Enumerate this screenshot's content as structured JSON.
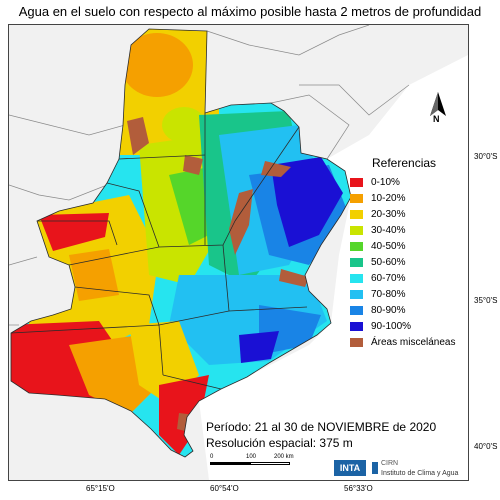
{
  "title": "Agua en el suelo con respecto al máximo posible hasta 2 metros de profundidad",
  "legend": {
    "title": "Referencias",
    "items": [
      {
        "label": "0-10%",
        "color": "#e8141b"
      },
      {
        "label": "10-20%",
        "color": "#f5a000"
      },
      {
        "label": "20-30%",
        "color": "#f2d000"
      },
      {
        "label": "30-40%",
        "color": "#c9e400"
      },
      {
        "label": "40-50%",
        "color": "#55d62a"
      },
      {
        "label": "50-60%",
        "color": "#19c58a"
      },
      {
        "label": "60-70%",
        "color": "#26e4ef"
      },
      {
        "label": "70-80%",
        "color": "#22c0f2"
      },
      {
        "label": "80-90%",
        "color": "#1984e6"
      },
      {
        "label": "90-100%",
        "color": "#1a10d4"
      },
      {
        "label": "Áreas misceláneas",
        "color": "#b25d3b"
      }
    ]
  },
  "north_label": "N",
  "latitudes": [
    "30°0'S",
    "35°0'S",
    "40°0'S"
  ],
  "longitudes": [
    "65°15'O",
    "60°54'O",
    "56°33'O"
  ],
  "period": "Período: 21 al 30 de NOVIEMBRE de 2020",
  "resolution": "Resolución espacial: 375 m",
  "scale": {
    "labels": [
      "0",
      "100",
      "200 km"
    ]
  },
  "logos": {
    "inta": "INTA",
    "cirn": "CIRN",
    "institute": "Instituto de Clima y Agua"
  }
}
